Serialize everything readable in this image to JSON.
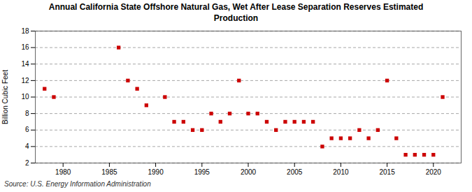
{
  "chart_data": {
    "type": "scatter",
    "title": "Annual California State Offshore Natural Gas, Wet After Lease Separation Reserves Estimated\nProduction",
    "ylabel": "Billion Cubic Feet",
    "source": "Source: U.S. Energy Information Administration",
    "x": [
      1978,
      1979,
      1986,
      1987,
      1988,
      1989,
      1991,
      1992,
      1993,
      1994,
      1995,
      1996,
      1997,
      1998,
      1999,
      2000,
      2001,
      2002,
      2003,
      2004,
      2005,
      2006,
      2007,
      2008,
      2009,
      2010,
      2011,
      2012,
      2013,
      2014,
      2015,
      2016,
      2017,
      2018,
      2019,
      2020,
      2021
    ],
    "values": [
      11,
      10,
      16,
      12,
      11,
      9,
      10,
      7,
      7,
      6,
      6,
      8,
      7,
      8,
      12,
      8,
      8,
      7,
      6,
      7,
      7,
      7,
      7,
      4,
      5,
      5,
      5,
      6,
      5,
      6,
      12,
      5,
      3,
      3,
      3,
      3,
      10
    ],
    "color": "#cc0000",
    "marker": "square",
    "xlim": [
      1977,
      2023
    ],
    "xticks": [
      1980,
      1985,
      1990,
      1995,
      2000,
      2005,
      2010,
      2015,
      2020
    ],
    "ylim": [
      2,
      18
    ],
    "yticks": [
      2,
      4,
      6,
      8,
      10,
      12,
      14,
      16,
      18
    ],
    "grid": true
  }
}
